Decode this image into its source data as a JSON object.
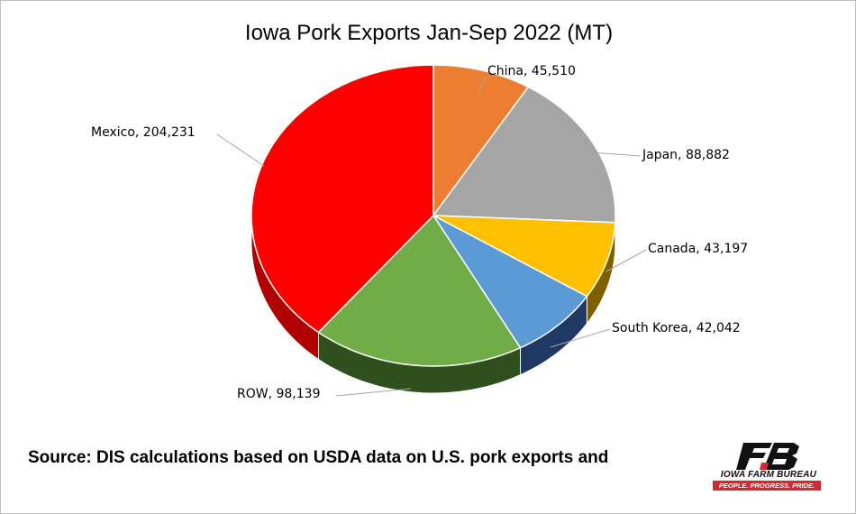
{
  "chart_data": {
    "type": "pie",
    "title": "Iowa Pork Exports Jan-Sep 2022 (MT)",
    "slices": [
      {
        "label": "China",
        "value": 45510,
        "value_text": "45,510",
        "color": "#ed7d31",
        "side": "#9c4d16"
      },
      {
        "label": "Japan",
        "value": 88882,
        "value_text": "88,882",
        "color": "#a5a5a5",
        "side": "#5f5f5f"
      },
      {
        "label": "Canada",
        "value": 43197,
        "value_text": "43,197",
        "color": "#ffc000",
        "side": "#7f6000"
      },
      {
        "label": "South Korea",
        "value": 42042,
        "value_text": "42,042",
        "color": "#5b9bd5",
        "side": "#203864"
      },
      {
        "label": "ROW",
        "value": 98139,
        "value_text": "98,139",
        "color": "#70ad47",
        "side": "#2f4f1d"
      },
      {
        "label": "Mexico",
        "value": 204231,
        "value_text": "204,231",
        "color": "#ff0000",
        "side": "#b00000"
      }
    ],
    "start_angle_deg": 0,
    "direction": "clockwise",
    "legend": "none",
    "data_labels": "category, value"
  },
  "footer": {
    "source": "Source: DIS calculations  based on USDA data on U.S. pork exports and"
  },
  "logo": {
    "name": "IOWA FARM BUREAU",
    "tagline": "PEOPLE. PROGRESS. PRIDE.",
    "mark_text": "FB",
    "accent_color": "#d7262c"
  }
}
